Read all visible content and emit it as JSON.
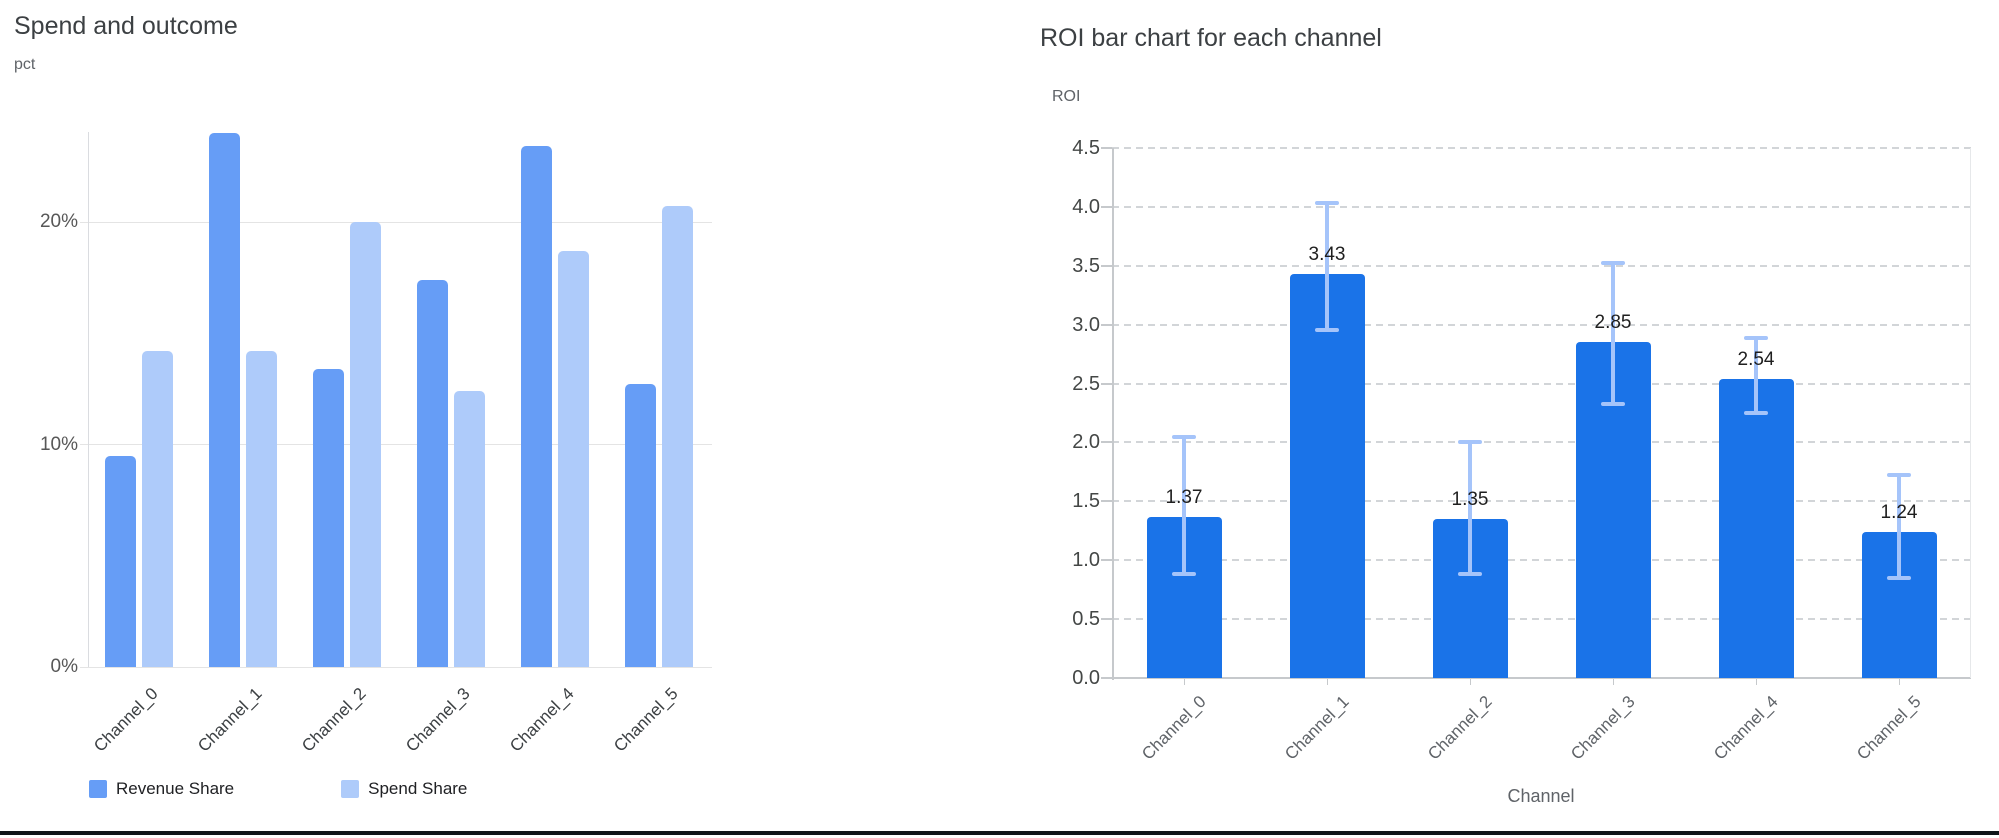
{
  "chart_data": [
    {
      "type": "bar",
      "title": "Spend and outcome",
      "ylabel": "pct",
      "xlabel": "",
      "categories": [
        "Channel_0",
        "Channel_1",
        "Channel_2",
        "Channel_3",
        "Channel_4",
        "Channel_5"
      ],
      "series": [
        {
          "name": "Revenue Share",
          "color": "#669df6",
          "values": [
            9.5,
            24.0,
            13.4,
            17.4,
            23.4,
            12.7
          ]
        },
        {
          "name": "Spend Share",
          "color": "#aecbfa",
          "values": [
            14.2,
            14.2,
            20.0,
            12.4,
            18.7,
            20.7
          ]
        }
      ],
      "ylim": [
        0,
        24.0
      ],
      "yticks": [
        0,
        10,
        20
      ],
      "ytick_labels": [
        "0%",
        "10%",
        "20%"
      ],
      "grid": "solid",
      "legend_position": "bottom"
    },
    {
      "type": "bar",
      "title": "ROI bar chart for each channel",
      "ylabel": "ROI",
      "xlabel": "Channel",
      "categories": [
        "Channel_0",
        "Channel_1",
        "Channel_2",
        "Channel_3",
        "Channel_4",
        "Channel_5"
      ],
      "values": [
        1.37,
        3.43,
        1.35,
        2.85,
        2.54,
        1.24
      ],
      "data_labels": [
        "1.37",
        "3.43",
        "1.35",
        "2.85",
        "2.54",
        "1.24"
      ],
      "error_low": [
        0.88,
        2.95,
        0.88,
        2.33,
        2.25,
        0.85
      ],
      "error_high": [
        2.05,
        4.03,
        2.0,
        3.52,
        2.89,
        1.72
      ],
      "bar_color": "#1a73e8",
      "error_color": "#a5c4fa",
      "ylim": [
        0,
        4.5
      ],
      "yticks": [
        0.0,
        0.5,
        1.0,
        1.5,
        2.0,
        2.5,
        3.0,
        3.5,
        4.0,
        4.5
      ],
      "ytick_labels": [
        "0.0",
        "0.5",
        "1.0",
        "1.5",
        "2.0",
        "2.5",
        "3.0",
        "3.5",
        "4.0",
        "4.5"
      ],
      "grid": "dashed",
      "legend_position": "none"
    }
  ]
}
